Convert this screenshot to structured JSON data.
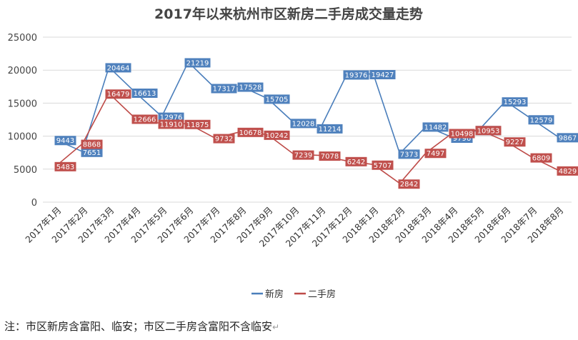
{
  "chart_data": {
    "type": "line",
    "title": "2017年以来杭州市区新房二手房成交量走势",
    "categories": [
      "2017年1月",
      "2017年2月",
      "2017年3月",
      "2017年4月",
      "2017年5月",
      "2017年6月",
      "2017年7月",
      "2017年8月",
      "2017年9月",
      "2017年10月",
      "2017年11月",
      "2017年12月",
      "2018年1月",
      "2018年2月",
      "2018年3月",
      "2018年4月",
      "2018年5月",
      "2018年6月",
      "2018年7月",
      "2018年8月"
    ],
    "series": [
      {
        "name": "新房",
        "color": "#4a7ebb",
        "label_bg": "#4f81bd",
        "values": [
          9443,
          7651,
          20464,
          16613,
          12976,
          21219,
          17317,
          17528,
          15705,
          12028,
          11214,
          19376,
          19427,
          7373,
          11482,
          9796,
          10953,
          15293,
          12579,
          9867
        ]
      },
      {
        "name": "二手房",
        "color": "#be4b48",
        "label_bg": "#c0504d",
        "values": [
          5483,
          8868,
          16479,
          12666,
          11910,
          11875,
          9732,
          10678,
          10242,
          7239,
          7078,
          6242,
          5707,
          2842,
          7497,
          10498,
          10953,
          9227,
          6809,
          4829
        ]
      }
    ],
    "ylim": [
      0,
      25000
    ],
    "yticks": [
      0,
      5000,
      10000,
      15000,
      20000,
      25000
    ],
    "grid": true,
    "legend": "bottom"
  },
  "note": "注：市区新房含富阳、临安；市区二手房含富阳不含临安",
  "note_mark": "↵"
}
